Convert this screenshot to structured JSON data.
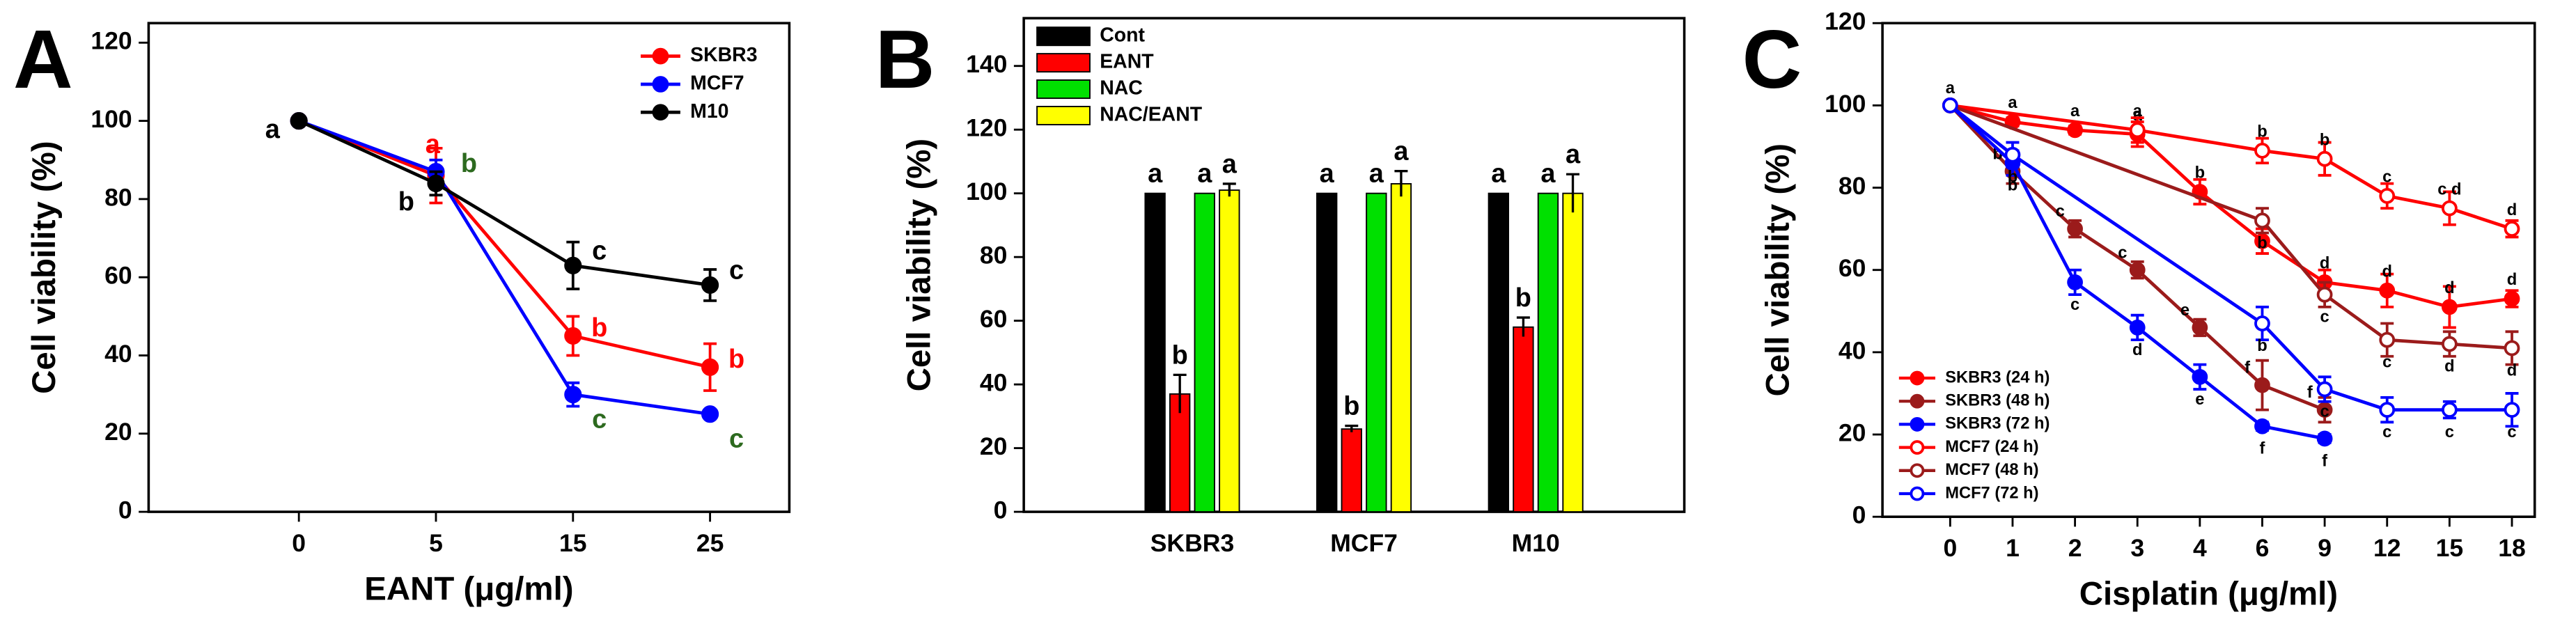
{
  "chart_data": [
    {
      "type": "line",
      "panel_label": "A",
      "x_label": "EANT (μg/ml)",
      "y_label": "Cell viability (%)",
      "categories": [
        0,
        5,
        15,
        25
      ],
      "ylim": [
        0,
        125
      ],
      "yticks": [
        0,
        20,
        40,
        60,
        80,
        100,
        120
      ],
      "legend": "upper right",
      "series": [
        {
          "name": "SKBR3",
          "color": "#ff0000",
          "label_color": "#ff0000",
          "marker": "filled",
          "values": [
            100,
            86,
            45,
            37
          ],
          "errors": [
            0,
            7,
            5,
            6
          ],
          "labels": [
            null,
            "a",
            "b",
            "b"
          ]
        },
        {
          "name": "MCF7",
          "color": "#0000ff",
          "label_color": "#2d6a1f",
          "marker": "filled",
          "values": [
            100,
            87,
            30,
            25
          ],
          "errors": [
            0,
            3,
            3,
            1
          ],
          "labels": [
            null,
            "b",
            "c",
            "c"
          ]
        },
        {
          "name": "M10",
          "color": "#000000",
          "label_color": "#000000",
          "marker": "filled",
          "values": [
            100,
            84,
            63,
            58
          ],
          "errors": [
            0,
            3,
            6,
            4
          ],
          "labels": [
            "a",
            "b",
            "c",
            "c"
          ]
        }
      ]
    },
    {
      "type": "bar",
      "panel_label": "B",
      "y_label": "Cell viability (%)",
      "categories": [
        "SKBR3",
        "MCF7",
        "M10"
      ],
      "ylim": [
        0,
        155
      ],
      "yticks": [
        0,
        20,
        40,
        60,
        80,
        100,
        120,
        140
      ],
      "legend": "upper left",
      "series": [
        {
          "name": "Cont",
          "color": "#000000",
          "values": [
            100,
            100,
            100
          ],
          "errors": [
            0,
            0,
            0
          ],
          "labels": [
            "a",
            "a",
            "a"
          ]
        },
        {
          "name": "EANT",
          "color": "#ff0000",
          "values": [
            37,
            26,
            58
          ],
          "errors": [
            6,
            1,
            3
          ],
          "labels": [
            "b",
            "b",
            "b"
          ]
        },
        {
          "name": "NAC",
          "color": "#00e000",
          "values": [
            100,
            100,
            100
          ],
          "errors": [
            0,
            0,
            0
          ],
          "labels": [
            "a",
            "a",
            "a"
          ]
        },
        {
          "name": "NAC/EANT",
          "color": "#ffff00",
          "values": [
            101,
            103,
            100
          ],
          "errors": [
            2,
            4,
            6
          ],
          "labels": [
            "a",
            "a",
            "a"
          ]
        }
      ]
    },
    {
      "type": "line",
      "panel_label": "C",
      "x_label": "Cisplatin (μg/ml)",
      "y_label": "Cell viability (%)",
      "categories": [
        0,
        1,
        2,
        3,
        4,
        6,
        9,
        12,
        15,
        18
      ],
      "ylim": [
        0,
        120
      ],
      "yticks": [
        0,
        20,
        40,
        60,
        80,
        100,
        120
      ],
      "legend": "lower left",
      "series": [
        {
          "name": "SKBR3 (24 h)",
          "color": "#ff0000",
          "marker": "filled",
          "x": [
            0,
            1,
            2,
            3,
            4,
            6,
            9,
            12,
            15,
            18
          ],
          "values": [
            100,
            96,
            94,
            93,
            79,
            67,
            57,
            55,
            51,
            53
          ],
          "errors": [
            0,
            1,
            1,
            3,
            3,
            3,
            3,
            4,
            5,
            2
          ],
          "labels": [
            "a",
            "a",
            "a",
            "a",
            "b",
            "c",
            "d",
            "d",
            "d",
            "d"
          ]
        },
        {
          "name": "SKBR3 (48 h)",
          "color": "#9b1b1b",
          "marker": "filled",
          "x": [
            0,
            1,
            2,
            3,
            4,
            6,
            9
          ],
          "values": [
            100,
            84,
            70,
            60,
            46,
            32,
            26
          ],
          "errors": [
            0,
            3,
            2,
            2,
            2,
            6,
            3
          ],
          "labels": [
            null,
            "b",
            "c",
            "c",
            "e",
            "f",
            "f"
          ]
        },
        {
          "name": "SKBR3 (72 h)",
          "color": "#0000ff",
          "marker": "filled",
          "x": [
            0,
            1,
            2,
            3,
            4,
            6,
            9
          ],
          "values": [
            100,
            86,
            57,
            46,
            34,
            22,
            19
          ],
          "errors": [
            0,
            3,
            3,
            3,
            3,
            1,
            1
          ],
          "labels": [
            null,
            "b",
            "c",
            "d",
            "e",
            "f",
            "f"
          ]
        },
        {
          "name": "MCF7 (24 h)",
          "color": "#ff0000",
          "marker": "open",
          "x": [
            0,
            3,
            6,
            9,
            12,
            15,
            18
          ],
          "values": [
            100,
            94,
            89,
            87,
            78,
            75,
            70
          ],
          "errors": [
            0,
            3,
            3,
            4,
            3,
            4,
            2
          ],
          "labels": [
            null,
            "a",
            "b",
            "b",
            "c",
            "c d",
            "d"
          ]
        },
        {
          "name": "MCF7 (48 h)",
          "color": "#9b1b1b",
          "marker": "open",
          "x": [
            0,
            6,
            9,
            12,
            15,
            18
          ],
          "values": [
            100,
            72,
            54,
            43,
            42,
            41
          ],
          "errors": [
            0,
            3,
            3,
            4,
            3,
            4
          ],
          "labels": [
            null,
            "b",
            "c",
            "c",
            "d",
            "d"
          ]
        },
        {
          "name": "MCF7 (72 h)",
          "color": "#0000ff",
          "marker": "open",
          "x": [
            0,
            1,
            6,
            9,
            12,
            15,
            18
          ],
          "values": [
            100,
            88,
            47,
            31,
            26,
            26,
            26
          ],
          "errors": [
            0,
            3,
            4,
            3,
            3,
            2,
            4
          ],
          "labels": [
            null,
            "b",
            "b",
            "c",
            "c",
            "c",
            "c"
          ]
        }
      ]
    }
  ]
}
